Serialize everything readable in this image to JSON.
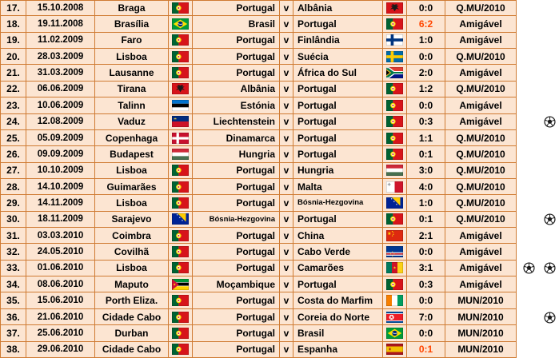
{
  "colors": {
    "row_bg": "#fce5d2",
    "border": "#cf7b33",
    "text": "#000000",
    "loss_score": "#ff4500",
    "page_bg": "#ffffff"
  },
  "icons": {
    "ball": "soccer-ball-icon"
  },
  "table": {
    "rows": [
      {
        "num": "17.",
        "date": "15.10.2008",
        "city": "Braga",
        "home_flag": "portugal",
        "home": "Portugal",
        "vs": "v",
        "away": "Albânia",
        "away_flag": "albania",
        "score": "0:0",
        "loss": false,
        "competition": "Q.MU/2010",
        "balls": 0
      },
      {
        "num": "18.",
        "date": "19.11.2008",
        "city": "Brasília",
        "home_flag": "brazil",
        "home": "Brasil",
        "vs": "v",
        "away": "Portugal",
        "away_flag": "portugal",
        "score": "6:2",
        "loss": true,
        "competition": "Amigável",
        "balls": 0
      },
      {
        "num": "19.",
        "date": "11.02.2009",
        "city": "Faro",
        "home_flag": "portugal",
        "home": "Portugal",
        "vs": "v",
        "away": "Finlândia",
        "away_flag": "finland",
        "score": "1:0",
        "loss": false,
        "competition": "Amigável",
        "balls": 0
      },
      {
        "num": "20.",
        "date": "28.03.2009",
        "city": "Lisboa",
        "home_flag": "portugal",
        "home": "Portugal",
        "vs": "v",
        "away": "Suécia",
        "away_flag": "sweden",
        "score": "0:0",
        "loss": false,
        "competition": "Q.MU/2010",
        "balls": 0
      },
      {
        "num": "21.",
        "date": "31.03.2009",
        "city": "Lausanne",
        "home_flag": "portugal",
        "home": "Portugal",
        "vs": "v",
        "away": "África do Sul",
        "away_flag": "south-africa",
        "score": "2:0",
        "loss": false,
        "competition": "Amigável",
        "balls": 0
      },
      {
        "num": "22.",
        "date": "06.06.2009",
        "city": "Tirana",
        "home_flag": "albania",
        "home": "Albânia",
        "vs": "v",
        "away": "Portugal",
        "away_flag": "portugal",
        "score": "1:2",
        "loss": false,
        "competition": "Q.MU/2010",
        "balls": 0
      },
      {
        "num": "23.",
        "date": "10.06.2009",
        "city": "Talinn",
        "home_flag": "estonia",
        "home": "Estónia",
        "vs": "v",
        "away": "Portugal",
        "away_flag": "portugal",
        "score": "0:0",
        "loss": false,
        "competition": "Amigável",
        "balls": 0
      },
      {
        "num": "24.",
        "date": "12.08.2009",
        "city": "Vaduz",
        "home_flag": "liechtenstein",
        "home": "Liechtenstein",
        "vs": "v",
        "away": "Portugal",
        "away_flag": "portugal",
        "score": "0:3",
        "loss": false,
        "competition": "Amigável",
        "balls": 1
      },
      {
        "num": "25.",
        "date": "05.09.2009",
        "city": "Copenhaga",
        "home_flag": "denmark",
        "home": "Dinamarca",
        "vs": "v",
        "away": "Portugal",
        "away_flag": "portugal",
        "score": "1:1",
        "loss": false,
        "competition": "Q.MU/2010",
        "balls": 0
      },
      {
        "num": "26.",
        "date": "09.09.2009",
        "city": "Budapest",
        "home_flag": "hungary",
        "home": "Hungria",
        "vs": "v",
        "away": "Portugal",
        "away_flag": "portugal",
        "score": "0:1",
        "loss": false,
        "competition": "Q.MU/2010",
        "balls": 0
      },
      {
        "num": "27.",
        "date": "10.10.2009",
        "city": "Lisboa",
        "home_flag": "portugal",
        "home": "Portugal",
        "vs": "v",
        "away": "Hungria",
        "away_flag": "hungary",
        "score": "3:0",
        "loss": false,
        "competition": "Q.MU/2010",
        "balls": 0
      },
      {
        "num": "28.",
        "date": "14.10.2009",
        "city": "Guimarães",
        "home_flag": "portugal",
        "home": "Portugal",
        "vs": "v",
        "away": "Malta",
        "away_flag": "malta",
        "score": "4:0",
        "loss": false,
        "competition": "Q.MU/2010",
        "balls": 0
      },
      {
        "num": "29.",
        "date": "14.11.2009",
        "city": "Lisboa",
        "home_flag": "portugal",
        "home": "Portugal",
        "vs": "v",
        "away": "Bósnia-Hezgovina",
        "away_flag": "bosnia",
        "score": "1:0",
        "loss": false,
        "competition": "Q.MU/2010",
        "balls": 0
      },
      {
        "num": "30.",
        "date": "18.11.2009",
        "city": "Sarajevo",
        "home_flag": "bosnia",
        "home": "Bósnia-Hezgovina",
        "vs": "v",
        "away": "Portugal",
        "away_flag": "portugal",
        "score": "0:1",
        "loss": false,
        "competition": "Q.MU/2010",
        "balls": 1
      },
      {
        "num": "31.",
        "date": "03.03.2010",
        "city": "Coimbra",
        "home_flag": "portugal",
        "home": "Portugal",
        "vs": "v",
        "away": "China",
        "away_flag": "china",
        "score": "2:1",
        "loss": false,
        "competition": "Amigável",
        "balls": 0
      },
      {
        "num": "32.",
        "date": "24.05.2010",
        "city": "Covilhã",
        "home_flag": "portugal",
        "home": "Portugal",
        "vs": "v",
        "away": "Cabo Verde",
        "away_flag": "cape-verde",
        "score": "0:0",
        "loss": false,
        "competition": "Amigável",
        "balls": 0
      },
      {
        "num": "33.",
        "date": "01.06.2010",
        "city": "Lisboa",
        "home_flag": "portugal",
        "home": "Portugal",
        "vs": "v",
        "away": "Camarões",
        "away_flag": "cameroon",
        "score": "3:1",
        "loss": false,
        "competition": "Amigável",
        "balls": 2
      },
      {
        "num": "34.",
        "date": "08.06.2010",
        "city": "Maputo",
        "home_flag": "mozambique",
        "home": "Moçambique",
        "vs": "v",
        "away": "Portugal",
        "away_flag": "portugal",
        "score": "0:3",
        "loss": false,
        "competition": "Amigável",
        "balls": 0
      },
      {
        "num": "35.",
        "date": "15.06.2010",
        "city": "Porth Eliza.",
        "home_flag": "portugal",
        "home": "Portugal",
        "vs": "v",
        "away": "Costa do Marfim",
        "away_flag": "ivory-coast",
        "score": "0:0",
        "loss": false,
        "competition": "MUN/2010",
        "balls": 0
      },
      {
        "num": "36.",
        "date": "21.06.2010",
        "city": "Cidade Cabo",
        "home_flag": "portugal",
        "home": "Portugal",
        "vs": "v",
        "away": "Coreia do Norte",
        "away_flag": "north-korea",
        "score": "7:0",
        "loss": false,
        "competition": "MUN/2010",
        "balls": 1
      },
      {
        "num": "37.",
        "date": "25.06.2010",
        "city": "Durban",
        "home_flag": "portugal",
        "home": "Portugal",
        "vs": "v",
        "away": "Brasil",
        "away_flag": "brazil",
        "score": "0:0",
        "loss": false,
        "competition": "MUN/2010",
        "balls": 0
      },
      {
        "num": "38.",
        "date": "29.06.2010",
        "city": "Cidade Cabo",
        "home_flag": "portugal",
        "home": "Portugal",
        "vs": "v",
        "away": "Espanha",
        "away_flag": "spain",
        "score": "0:1",
        "loss": true,
        "competition": "MUN/2010",
        "balls": 0
      }
    ]
  }
}
